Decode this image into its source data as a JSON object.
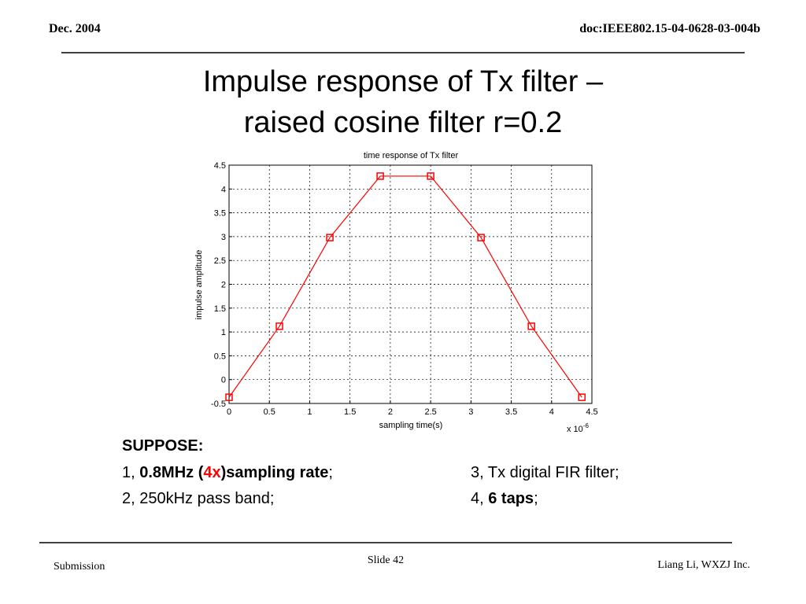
{
  "header": {
    "date": "Dec.  2004",
    "doc": "doc:IEEE802.15-04-0628-03-004b"
  },
  "slide_title": [
    "Impulse response of Tx filter –",
    "raised cosine filter r=0.2"
  ],
  "chart_data": {
    "type": "line",
    "title": "time response of Tx filter",
    "x_label": "sampling time(s)",
    "y_label": "impulse amplitude",
    "x_multiplier": "x 10",
    "x_multiplier_exponent": "-6",
    "x": [
      0,
      0.625,
      1.25,
      1.875,
      2.5,
      3.125,
      3.75,
      4.375
    ],
    "series": [
      {
        "color": "#ff0000",
        "values": [
          -0.37,
          1.12,
          2.98,
          4.27,
          4.27,
          2.98,
          1.12,
          -0.37
        ]
      }
    ],
    "xlim": [
      0,
      4.5
    ],
    "xticks": [
      0,
      0.5,
      1,
      1.5,
      2,
      2.5,
      3,
      3.5,
      4,
      4.5
    ],
    "ylim": [
      -0.5,
      4.5
    ],
    "yticks": [
      -0.5,
      0,
      0.5,
      1,
      1.5,
      2,
      2.5,
      3,
      3.5,
      4,
      4.5
    ],
    "grid": true,
    "marker": "square"
  },
  "suppose": {
    "heading": "SUPPOSE:",
    "item1": [
      "1, ",
      "0.8MHz (",
      "4x",
      ")sampling rate",
      ";"
    ],
    "item2": "2, 250kHz pass band;",
    "item3": "3, Tx digital FIR filter;",
    "item4": [
      "4, ",
      "6 taps",
      ";"
    ]
  },
  "footer": {
    "left": "Submission",
    "center": "Slide 42",
    "right": "Liang Li, WXZJ Inc."
  }
}
